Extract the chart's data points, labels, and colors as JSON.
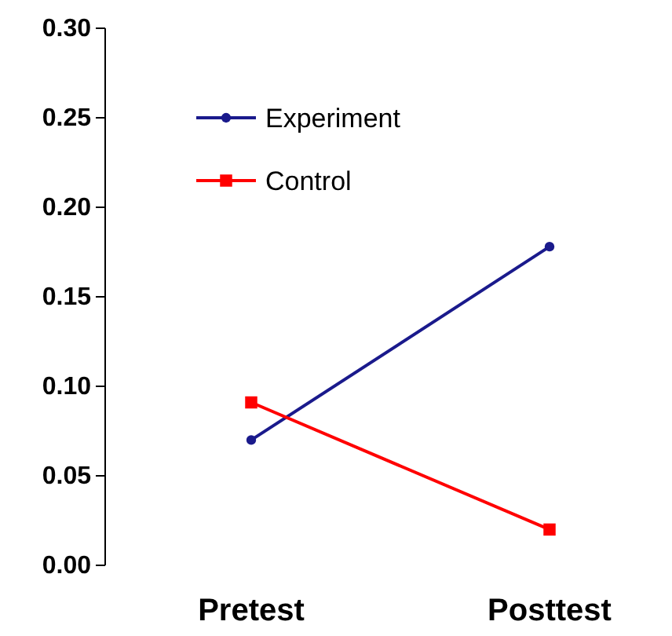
{
  "chart_data": {
    "type": "line",
    "categories": [
      "Pretest",
      "Posttest"
    ],
    "series": [
      {
        "name": "Experiment",
        "color": "#1a1a8c",
        "values": [
          0.07,
          0.178
        ],
        "marker": "circle"
      },
      {
        "name": "Control",
        "color": "#ff0000",
        "values": [
          0.091,
          0.02
        ],
        "marker": "square"
      }
    ],
    "ylim": [
      0,
      0.3
    ],
    "yticks": [
      {
        "value": 0,
        "label": "0.00"
      },
      {
        "value": 0.05,
        "label": "0.05"
      },
      {
        "value": 0.1,
        "label": "0.10"
      },
      {
        "value": 0.15,
        "label": "0.15"
      },
      {
        "value": 0.2,
        "label": "0.20"
      },
      {
        "value": 0.25,
        "label": "0.25"
      },
      {
        "value": 0.3,
        "label": "0.30"
      }
    ],
    "legend": "top left",
    "grid": false,
    "line_style": "solid"
  }
}
